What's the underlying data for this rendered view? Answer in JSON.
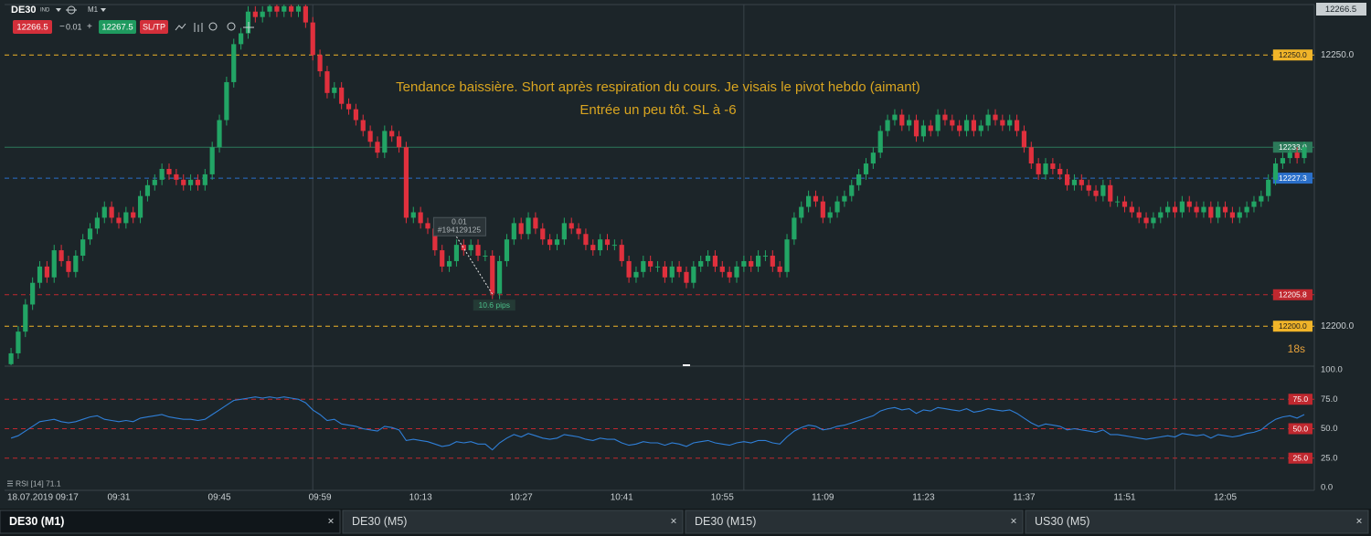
{
  "toolbar": {
    "symbol": "DE30",
    "market": "IND",
    "timeframe": "M1",
    "sell": "12266.5",
    "lot_minus": "−",
    "lot": "0.01",
    "lot_plus": "+",
    "buy": "12267.5",
    "sltp": "SL/TP"
  },
  "timer": "18s",
  "tabs": [
    {
      "label": "DE30 (M1)",
      "close": "×",
      "active": true
    },
    {
      "label": "DE30 (M5)",
      "close": "×",
      "active": false
    },
    {
      "label": "DE30 (M15)",
      "close": "×",
      "active": false
    },
    {
      "label": "US30 (M5)",
      "close": "×",
      "active": false
    }
  ],
  "chart_data": [
    {
      "type": "candlestick",
      "up_color": "#22a565",
      "down_color": "#e0303d",
      "annotation": [
        "Tendance baissière. Short après respiration du cours. Je visais le pivot hebdo (aimant)",
        "Entrée un peu tôt. SL à -6"
      ],
      "last_price_label": "12266.5",
      "xlim": [
        -0.9,
        181.4
      ],
      "ylim": [
        12192.8,
        12259.3
      ],
      "yticks": [
        {
          "value": 12250,
          "label": "12250.0"
        },
        {
          "value": 12200,
          "label": "12200.0"
        }
      ],
      "xticks": [
        {
          "value": 1,
          "label": "18.07.2019 09:17"
        },
        {
          "value": 15,
          "label": "09:31"
        },
        {
          "value": 29,
          "label": "09:45"
        },
        {
          "value": 43,
          "label": "09:59"
        },
        {
          "value": 57,
          "label": "10:13"
        },
        {
          "value": 71,
          "label": "10:27"
        },
        {
          "value": 85,
          "label": "10:41"
        },
        {
          "value": 99,
          "label": "10:55"
        },
        {
          "value": 113,
          "label": "11:09"
        },
        {
          "value": 127,
          "label": "11:23"
        },
        {
          "value": 141,
          "label": "11:37"
        },
        {
          "value": 155,
          "label": "11:51"
        },
        {
          "value": 169,
          "label": "12:05"
        }
      ],
      "xgrid": [
        42,
        102,
        162
      ],
      "levels": [
        {
          "value": 12250,
          "label": "12250.0",
          "color": "#f0b429",
          "label_color": "#1b1b1b",
          "style": "dashed"
        },
        {
          "value": 12233,
          "label": "12233.0",
          "color": "#2c7a5a",
          "label_color": "#ffffff",
          "style": "solid"
        },
        {
          "value": 12227.3,
          "label": "12227.3",
          "color": "#2a6fc9",
          "label_color": "#ffffff",
          "style": "dashed"
        },
        {
          "value": 12205.8,
          "label": "12205.8",
          "color": "#c0282f",
          "label_color": "#ffffff",
          "style": "dashed"
        },
        {
          "value": 12200,
          "label": "12200.0",
          "color": "#f0b429",
          "label_color": "#1b1b1b",
          "style": "dashed"
        }
      ],
      "trade": {
        "volume_label": "0.01",
        "id": "#194129125",
        "pips_label": "10.6 pips",
        "entry": {
          "index": 62,
          "price": 12216.5
        },
        "exit": {
          "index": 67,
          "price": 12205.9
        }
      },
      "open": [
        12193,
        12195,
        12199,
        12204,
        12208,
        12211,
        12209,
        12214,
        12212,
        12210,
        12213,
        12216,
        12218,
        12220,
        12222,
        12220,
        12219,
        12221,
        12220,
        12224,
        12226,
        12227,
        12229,
        12228,
        12227,
        12226,
        12227,
        12226,
        12228,
        12233,
        12238,
        12245,
        12252,
        12254,
        12258,
        12257,
        12258,
        12259,
        12258,
        12259,
        12258,
        12259,
        12256,
        12250,
        12247,
        12243,
        12244,
        12241,
        12240,
        12238,
        12236,
        12234,
        12232,
        12236,
        12235,
        12233,
        12220,
        12221,
        12219,
        12218,
        12214,
        12211,
        12212,
        12215,
        12214,
        12215,
        12213,
        12213,
        12206,
        12212,
        12216,
        12219,
        12217,
        12220,
        12218,
        12216,
        12215,
        12216,
        12219,
        12218,
        12217,
        12215,
        12214,
        12216,
        12215,
        12215,
        12212,
        12209,
        12210,
        12212,
        12211,
        12211,
        12209,
        12211,
        12210,
        12208,
        12211,
        12212,
        12213,
        12211,
        12210,
        12209,
        12211,
        12212,
        12211,
        12213,
        12213,
        12211,
        12210,
        12216,
        12220,
        12222,
        12224,
        12223,
        12220,
        12221,
        12223,
        12224,
        12226,
        12228,
        12230,
        12232,
        12236,
        12238,
        12239,
        12237,
        12238,
        12235,
        12237,
        12236,
        12239,
        12238,
        12237,
        12236,
        12238,
        12236,
        12237,
        12239,
        12238,
        12237,
        12238,
        12236,
        12233,
        12230,
        12228,
        12230,
        12229,
        12228,
        12226,
        12227,
        12226,
        12225,
        12224,
        12226,
        12223,
        12223,
        12222,
        12221,
        12220,
        12219,
        12220,
        12221,
        12222,
        12221,
        12223,
        12222,
        12221,
        12222,
        12220,
        12222,
        12221,
        12220,
        12221,
        12222,
        12223,
        12224,
        12227,
        12230,
        12231,
        12232,
        12231
      ],
      "high": [
        12196,
        12200,
        12205,
        12209,
        12212,
        12212,
        12215,
        12215,
        12213,
        12214,
        12217,
        12219,
        12221,
        12223,
        12223,
        12221,
        12222,
        12222,
        12225,
        12227,
        12228,
        12230,
        12230,
        12229,
        12228,
        12228,
        12228,
        12229,
        12234,
        12239,
        12246,
        12253,
        12255,
        12259,
        12259,
        12259,
        12260,
        12260,
        12260,
        12260,
        12260,
        12260,
        12257,
        12251,
        12248,
        12245,
        12245,
        12242,
        12241,
        12239,
        12237,
        12235,
        12237,
        12237,
        12236,
        12234,
        12222,
        12222,
        12220,
        12219,
        12215,
        12213,
        12216,
        12216,
        12216,
        12216,
        12214,
        12214,
        12213,
        12217,
        12220,
        12220,
        12221,
        12221,
        12219,
        12217,
        12217,
        12220,
        12220,
        12219,
        12218,
        12216,
        12217,
        12217,
        12216,
        12216,
        12213,
        12211,
        12213,
        12213,
        12212,
        12212,
        12212,
        12212,
        12211,
        12212,
        12213,
        12214,
        12214,
        12212,
        12211,
        12212,
        12213,
        12213,
        12214,
        12214,
        12214,
        12212,
        12217,
        12221,
        12223,
        12225,
        12225,
        12224,
        12222,
        12224,
        12225,
        12227,
        12229,
        12231,
        12233,
        12237,
        12239,
        12240,
        12240,
        12239,
        12239,
        12238,
        12238,
        12240,
        12240,
        12239,
        12238,
        12239,
        12239,
        12238,
        12240,
        12240,
        12239,
        12239,
        12239,
        12237,
        12234,
        12231,
        12231,
        12231,
        12230,
        12229,
        12228,
        12228,
        12227,
        12226,
        12227,
        12227,
        12224,
        12224,
        12223,
        12222,
        12221,
        12221,
        12222,
        12223,
        12223,
        12224,
        12224,
        12223,
        12223,
        12223,
        12223,
        12223,
        12222,
        12222,
        12223,
        12224,
        12225,
        12228,
        12231,
        12232,
        12233,
        12233,
        12234
      ],
      "low": [
        12192,
        12194,
        12198,
        12203,
        12207,
        12208,
        12208,
        12211,
        12209,
        12209,
        12212,
        12215,
        12217,
        12219,
        12219,
        12218,
        12218,
        12219,
        12219,
        12223,
        12225,
        12226,
        12227,
        12226,
        12225,
        12225,
        12225,
        12225,
        12227,
        12232,
        12237,
        12244,
        12251,
        12253,
        12256,
        12256,
        12257,
        12257,
        12257,
        12257,
        12257,
        12255,
        12249,
        12246,
        12242,
        12242,
        12240,
        12239,
        12237,
        12235,
        12233,
        12231,
        12231,
        12234,
        12232,
        12219,
        12219,
        12218,
        12217,
        12213,
        12210,
        12210,
        12211,
        12213,
        12213,
        12212,
        12212,
        12205,
        12205,
        12211,
        12215,
        12216,
        12216,
        12217,
        12215,
        12214,
        12214,
        12215,
        12217,
        12216,
        12214,
        12213,
        12213,
        12214,
        12214,
        12211,
        12208,
        12208,
        12209,
        12210,
        12210,
        12208,
        12208,
        12209,
        12207,
        12207,
        12210,
        12211,
        12210,
        12209,
        12208,
        12208,
        12210,
        12210,
        12210,
        12212,
        12210,
        12209,
        12209,
        12215,
        12219,
        12221,
        12222,
        12219,
        12219,
        12220,
        12222,
        12223,
        12225,
        12227,
        12229,
        12231,
        12235,
        12237,
        12236,
        12236,
        12234,
        12234,
        12235,
        12235,
        12237,
        12236,
        12235,
        12235,
        12235,
        12235,
        12236,
        12237,
        12236,
        12236,
        12235,
        12232,
        12229,
        12227,
        12227,
        12228,
        12227,
        12225,
        12225,
        12225,
        12224,
        12223,
        12223,
        12222,
        12222,
        12221,
        12220,
        12219,
        12218,
        12218,
        12219,
        12220,
        12220,
        12220,
        12221,
        12220,
        12220,
        12219,
        12219,
        12220,
        12219,
        12219,
        12220,
        12221,
        12222,
        12223,
        12226,
        12229,
        12230,
        12230,
        12230
      ],
      "close": [
        12195,
        12199,
        12204,
        12208,
        12211,
        12209,
        12214,
        12212,
        12210,
        12213,
        12216,
        12218,
        12220,
        12222,
        12220,
        12219,
        12221,
        12220,
        12224,
        12226,
        12227,
        12229,
        12228,
        12227,
        12226,
        12227,
        12226,
        12228,
        12233,
        12238,
        12245,
        12252,
        12254,
        12258,
        12257,
        12258,
        12259,
        12258,
        12259,
        12258,
        12259,
        12256,
        12250,
        12247,
        12243,
        12244,
        12241,
        12240,
        12238,
        12236,
        12234,
        12232,
        12236,
        12235,
        12233,
        12220,
        12221,
        12219,
        12218,
        12214,
        12211,
        12212,
        12215,
        12214,
        12215,
        12213,
        12213,
        12206,
        12212,
        12216,
        12219,
        12217,
        12220,
        12218,
        12216,
        12215,
        12216,
        12219,
        12218,
        12217,
        12215,
        12214,
        12216,
        12215,
        12215,
        12212,
        12209,
        12210,
        12212,
        12211,
        12211,
        12209,
        12211,
        12210,
        12208,
        12211,
        12212,
        12213,
        12211,
        12210,
        12209,
        12211,
        12212,
        12211,
        12213,
        12213,
        12211,
        12210,
        12216,
        12220,
        12222,
        12224,
        12223,
        12220,
        12221,
        12223,
        12224,
        12226,
        12228,
        12230,
        12232,
        12236,
        12238,
        12239,
        12237,
        12238,
        12235,
        12237,
        12236,
        12239,
        12238,
        12237,
        12236,
        12238,
        12236,
        12237,
        12239,
        12238,
        12237,
        12238,
        12236,
        12233,
        12230,
        12228,
        12230,
        12229,
        12228,
        12226,
        12227,
        12226,
        12225,
        12224,
        12226,
        12223,
        12223,
        12222,
        12221,
        12220,
        12219,
        12220,
        12221,
        12222,
        12221,
        12223,
        12222,
        12221,
        12222,
        12220,
        12222,
        12221,
        12220,
        12221,
        12222,
        12223,
        12224,
        12227,
        12230,
        12231,
        12232,
        12231,
        12233
      ]
    },
    {
      "type": "line",
      "legend": "RSI [14] 71.1",
      "color": "#2f7fd8",
      "xlim": [
        -0.9,
        181.4
      ],
      "ylim": [
        0,
        100
      ],
      "yticks": [
        {
          "value": 100,
          "label": "100.0"
        },
        {
          "value": 75,
          "label": "75.0"
        },
        {
          "value": 50,
          "label": "50.0"
        },
        {
          "value": 25,
          "label": "25.0"
        },
        {
          "value": 0,
          "label": "0.0"
        }
      ],
      "levels": [
        {
          "value": 75,
          "label": "75.0",
          "color": "#c0282f",
          "label_color": "#ffffff",
          "style": "dashed"
        },
        {
          "value": 50,
          "label": "50.0",
          "color": "#c0282f",
          "label_color": "#ffffff",
          "style": "dashed"
        },
        {
          "value": 25,
          "label": "25.0",
          "color": "#c0282f",
          "label_color": "#ffffff",
          "style": "dashed"
        }
      ],
      "values": [
        42,
        44,
        48,
        52,
        56,
        57,
        58,
        56,
        55,
        56,
        58,
        60,
        61,
        58,
        57,
        56,
        57,
        56,
        59,
        60,
        61,
        62,
        60,
        59,
        58,
        58,
        57,
        58,
        62,
        66,
        70,
        74,
        75,
        76,
        77,
        76,
        77,
        76,
        77,
        76,
        75,
        72,
        66,
        62,
        57,
        58,
        54,
        53,
        52,
        50,
        49,
        48,
        52,
        51,
        49,
        40,
        41,
        40,
        39,
        37,
        35,
        36,
        39,
        38,
        39,
        37,
        37,
        32,
        38,
        42,
        45,
        43,
        46,
        44,
        42,
        41,
        42,
        45,
        44,
        43,
        41,
        40,
        42,
        41,
        41,
        38,
        36,
        37,
        39,
        38,
        38,
        36,
        38,
        37,
        35,
        38,
        39,
        40,
        38,
        37,
        36,
        38,
        39,
        38,
        40,
        40,
        38,
        37,
        43,
        48,
        51,
        53,
        52,
        49,
        50,
        52,
        53,
        55,
        57,
        59,
        61,
        65,
        67,
        68,
        66,
        67,
        63,
        66,
        65,
        68,
        67,
        66,
        65,
        67,
        64,
        65,
        67,
        66,
        65,
        66,
        63,
        59,
        55,
        52,
        54,
        53,
        52,
        49,
        50,
        49,
        48,
        47,
        49,
        45,
        45,
        44,
        43,
        42,
        41,
        42,
        43,
        44,
        43,
        46,
        45,
        44,
        45,
        42,
        45,
        44,
        43,
        44,
        46,
        47,
        49,
        54,
        58,
        60,
        61,
        59,
        62
      ]
    }
  ]
}
